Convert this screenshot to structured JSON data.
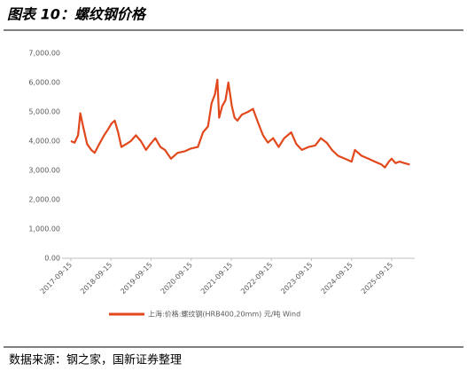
{
  "chart_data": {
    "type": "line",
    "title": "图表 10：螺纹钢价格",
    "source": "数据来源：钢之家，国新证券整理",
    "x": [
      "2017-09-15",
      "2017-10-20",
      "2017-11-20",
      "2017-12-10",
      "2018-01-05",
      "2018-02-10",
      "2018-03-20",
      "2018-04-20",
      "2018-06-01",
      "2018-07-15",
      "2018-08-20",
      "2018-09-20",
      "2018-10-20",
      "2018-11-20",
      "2018-12-20",
      "2019-02-01",
      "2019-03-15",
      "2019-05-01",
      "2019-06-15",
      "2019-08-01",
      "2019-09-10",
      "2019-10-25",
      "2019-12-10",
      "2020-01-20",
      "2020-03-15",
      "2020-05-15",
      "2020-07-15",
      "2020-09-15",
      "2020-11-15",
      "2021-01-01",
      "2021-02-15",
      "2021-03-20",
      "2021-04-20",
      "2021-05-12",
      "2021-05-28",
      "2021-06-25",
      "2021-07-25",
      "2021-08-20",
      "2021-09-20",
      "2021-10-15",
      "2021-11-10",
      "2021-12-20",
      "2022-02-15",
      "2022-04-01",
      "2022-05-20",
      "2022-07-01",
      "2022-08-15",
      "2022-10-01",
      "2022-11-20",
      "2023-01-10",
      "2023-03-15",
      "2023-05-01",
      "2023-06-20",
      "2023-08-20",
      "2023-10-20",
      "2023-12-10",
      "2024-02-01",
      "2024-03-20",
      "2024-05-15",
      "2024-07-15",
      "2024-09-15",
      "2024-10-15",
      "2024-12-15",
      "2025-02-15",
      "2025-04-15",
      "2025-06-15",
      "2025-07-15",
      "2025-08-20",
      "2025-09-15",
      "2025-10-20",
      "2025-11-25",
      "2026-01-10",
      "2026-02-27"
    ],
    "series": [
      {
        "name": "上海:价格:螺纹钢(HRB400,20mm) 元/吨 Wind",
        "color": "#e2481b",
        "values": [
          4000,
          3950,
          4200,
          4950,
          4500,
          3900,
          3700,
          3600,
          3900,
          4200,
          4400,
          4600,
          4700,
          4300,
          3800,
          3900,
          4000,
          4200,
          4000,
          3700,
          3900,
          4100,
          3800,
          3700,
          3400,
          3600,
          3650,
          3750,
          3800,
          4300,
          4500,
          5300,
          5600,
          6100,
          4800,
          5200,
          5400,
          6000,
          5200,
          4800,
          4700,
          4900,
          5000,
          5100,
          4600,
          4200,
          3950,
          4100,
          3800,
          4100,
          4300,
          3900,
          3700,
          3800,
          3850,
          4100,
          3950,
          3700,
          3500,
          3400,
          3300,
          3700,
          3500,
          3400,
          3300,
          3200,
          3100,
          3300,
          3400,
          3250,
          3300,
          3250,
          3200
        ]
      }
    ],
    "xlim": [
      "2017-06-27",
      "2026-04-13"
    ],
    "xticks": [
      "2017-09-15",
      "2018-09-15",
      "2019-09-15",
      "2020-09-15",
      "2021-09-15",
      "2022-09-15",
      "2023-09-15",
      "2024-09-15",
      "2025-09-15"
    ],
    "ylim": [
      0,
      7000
    ],
    "yticks": [
      {
        "value": 0,
        "label": "0.00"
      },
      {
        "value": 1000,
        "label": "1,000.00"
      },
      {
        "value": 2000,
        "label": "2,000.00"
      },
      {
        "value": 3000,
        "label": "3,000.00"
      },
      {
        "value": 4000,
        "label": "4,000.00"
      },
      {
        "value": 5000,
        "label": "5,000.00"
      },
      {
        "value": 6000,
        "label": "6,000.00"
      },
      {
        "value": 7000,
        "label": "7,000.00"
      }
    ],
    "legend": "bottom"
  }
}
